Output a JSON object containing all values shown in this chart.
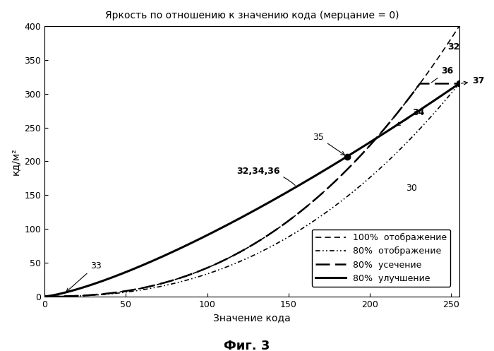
{
  "title": "Яркость по отношению к значению кода (мерцание = 0)",
  "xlabel": "Значение кода",
  "ylabel": "кд/м²",
  "caption": "Фиг. 3",
  "xlim": [
    0,
    255
  ],
  "ylim": [
    0,
    400
  ],
  "xticks": [
    0,
    50,
    100,
    150,
    200,
    250
  ],
  "yticks": [
    0,
    50,
    100,
    150,
    200,
    250,
    300,
    350,
    400
  ],
  "gamma": 2.4,
  "max_luminance_100": 400,
  "max_luminance_80": 315,
  "clip_start_x": 210,
  "midpoint_x": 186,
  "midpoint_y": 207,
  "background_color": "#ffffff",
  "line_color": "#000000"
}
